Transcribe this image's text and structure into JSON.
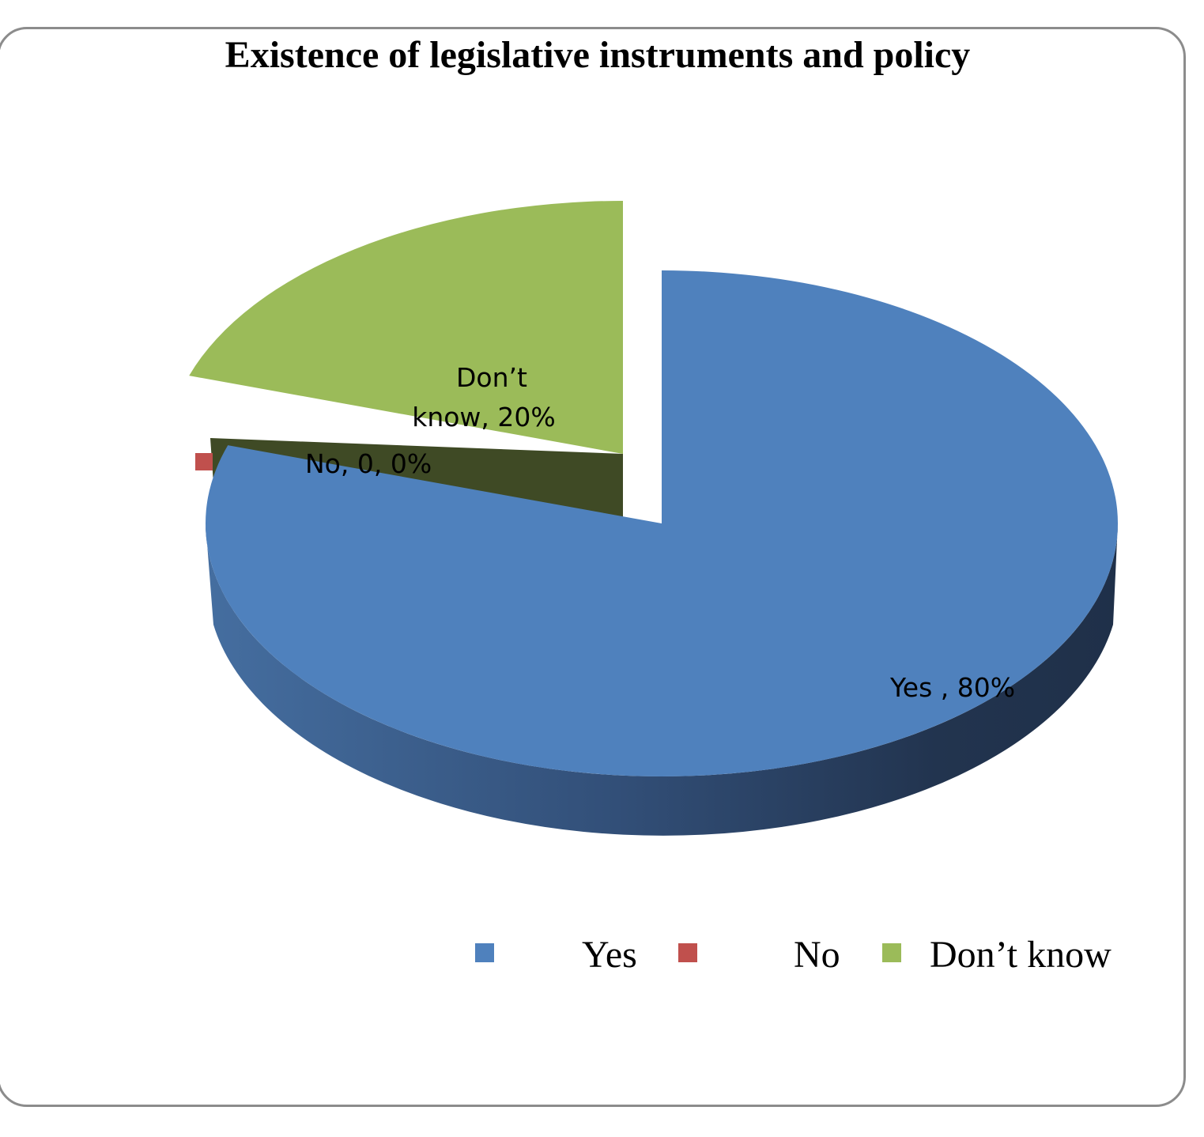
{
  "chart_data": {
    "type": "pie",
    "title": "Existence of legislative instruments and policy",
    "slices": [
      {
        "label": "Yes",
        "value": 80,
        "color": "#4f81bd",
        "data_label": "Yes , 80%"
      },
      {
        "label": "No",
        "value": 0,
        "color": "#c0504d",
        "data_label": "No, 0, 0%"
      },
      {
        "label": "Don’t know",
        "value": 20,
        "color": "#9bbb59",
        "data_label_lines": [
          "Don’t",
          "know, 20%"
        ]
      }
    ],
    "legend_position": "bottom",
    "style": "3d-exploded"
  }
}
